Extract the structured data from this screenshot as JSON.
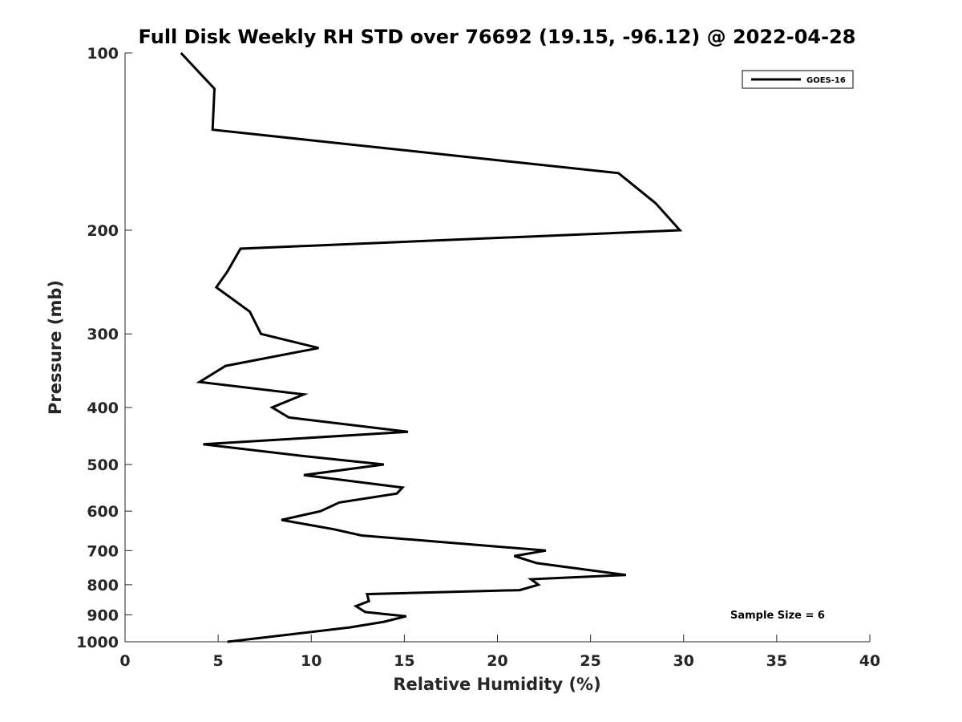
{
  "chart_data": {
    "type": "line",
    "title": "Full Disk Weekly RH STD over 76692 (19.15, -96.12) @ 2022-04-28",
    "xlabel": "Relative Humidity (%)",
    "ylabel": "Pressure (mb)",
    "xlim": [
      0,
      40
    ],
    "ylim": [
      100,
      1000
    ],
    "y_scale": "log",
    "y_reversed": true,
    "x_ticks": [
      "0",
      "5",
      "10",
      "15",
      "20",
      "25",
      "30",
      "35",
      "40"
    ],
    "y_ticks": [
      "100",
      "200",
      "300",
      "400",
      "500",
      "600",
      "700",
      "800",
      "900",
      "1000"
    ],
    "grid": false,
    "legend_position": "top-right",
    "annotation": "Sample Size = 6",
    "series": [
      {
        "name": "GOES-16",
        "color": "#000000",
        "points": [
          [
            3.0,
            100
          ],
          [
            4.8,
            115
          ],
          [
            4.7,
            135
          ],
          [
            26.5,
            160
          ],
          [
            28.5,
            180
          ],
          [
            29.8,
            200
          ],
          [
            6.2,
            215
          ],
          [
            5.5,
            235
          ],
          [
            4.9,
            250
          ],
          [
            6.7,
            275
          ],
          [
            7.3,
            300
          ],
          [
            10.4,
            317
          ],
          [
            5.4,
            340
          ],
          [
            4.0,
            362
          ],
          [
            9.6,
            380
          ],
          [
            7.9,
            400
          ],
          [
            8.8,
            416
          ],
          [
            15.2,
            440
          ],
          [
            4.2,
            462
          ],
          [
            9.9,
            485
          ],
          [
            13.9,
            500
          ],
          [
            9.6,
            521
          ],
          [
            14.9,
            547
          ],
          [
            14.6,
            560
          ],
          [
            11.5,
            580
          ],
          [
            10.5,
            600
          ],
          [
            8.4,
            621
          ],
          [
            11.2,
            644
          ],
          [
            12.7,
            660
          ],
          [
            22.6,
            700
          ],
          [
            20.9,
            715
          ],
          [
            22.1,
            735
          ],
          [
            26.9,
            770
          ],
          [
            21.8,
            783
          ],
          [
            22.2,
            800
          ],
          [
            21.2,
            817
          ],
          [
            13.0,
            830
          ],
          [
            13.1,
            853
          ],
          [
            12.4,
            870
          ],
          [
            12.9,
            890
          ],
          [
            15.1,
            905
          ],
          [
            13.9,
            925
          ],
          [
            12.1,
            945
          ],
          [
            5.5,
            1000
          ]
        ]
      }
    ]
  }
}
